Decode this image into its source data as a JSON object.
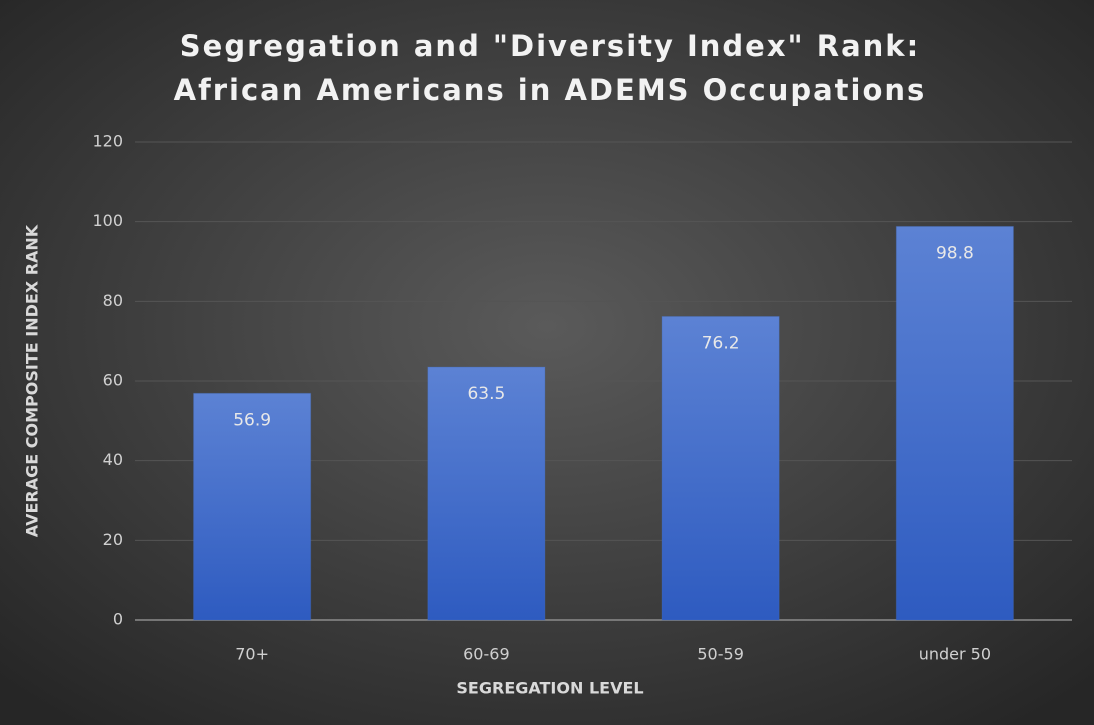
{
  "chart_data": {
    "type": "bar",
    "title": [
      "Segregation and \"Diversity Index\" Rank:",
      "African Americans in ADEMS Occupations"
    ],
    "x_label": "SEGREGATION LEVEL",
    "y_label": "AVERAGE COMPOSITE INDEX RANK",
    "categories": [
      "70+",
      "60-69",
      "50-59",
      "under 50"
    ],
    "values": [
      56.9,
      63.5,
      76.2,
      98.8
    ],
    "color": "#4472c4",
    "ylim": [
      0,
      120
    ],
    "yticks": [
      0,
      20,
      40,
      60,
      80,
      100,
      120
    ],
    "grid": true
  }
}
